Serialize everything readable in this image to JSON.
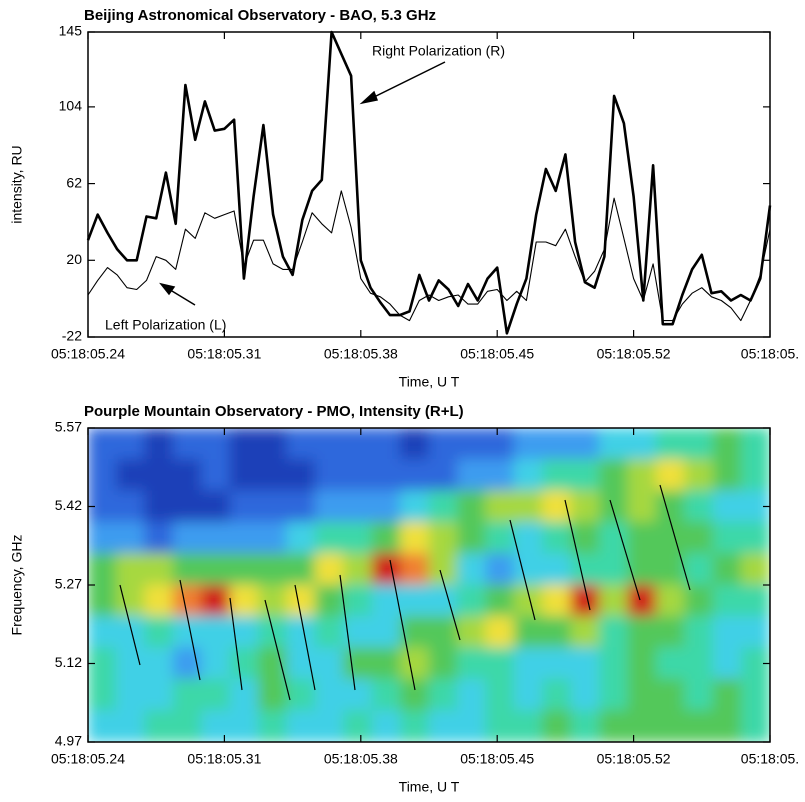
{
  "chart_data": [
    {
      "type": "line",
      "title": "Beijing Astronomical Observatory - BAO, 5.3 GHz",
      "ylabel": "intensity, RU",
      "xlabel": "Time, U T",
      "x": [
        5.24,
        5.245,
        5.25,
        5.255,
        5.26,
        5.265,
        5.27,
        5.275,
        5.28,
        5.285,
        5.29,
        5.295,
        5.3,
        5.305,
        5.31,
        5.315,
        5.32,
        5.325,
        5.33,
        5.335,
        5.34,
        5.345,
        5.35,
        5.355,
        5.36,
        5.365,
        5.37,
        5.375,
        5.38,
        5.385,
        5.39,
        5.395,
        5.4,
        5.405,
        5.41,
        5.415,
        5.42,
        5.425,
        5.43,
        5.435,
        5.44,
        5.445,
        5.45,
        5.455,
        5.46,
        5.465,
        5.47,
        5.475,
        5.48,
        5.485,
        5.49,
        5.495,
        5.5,
        5.505,
        5.51,
        5.515,
        5.52,
        5.525,
        5.53,
        5.535,
        5.54,
        5.545,
        5.55,
        5.555,
        5.56,
        5.565,
        5.57,
        5.575,
        5.58,
        5.585,
        5.59
      ],
      "series": [
        {
          "name": "Right Polarization (R)",
          "color": "#000000",
          "values": [
            31,
            45,
            35,
            26,
            20,
            20,
            44,
            43,
            68,
            40,
            116,
            86,
            107,
            91,
            92,
            97,
            10,
            55,
            94,
            45,
            22,
            12,
            42,
            58,
            64,
            145,
            133,
            121,
            20,
            5,
            -3,
            -10,
            -10,
            -8,
            12,
            -2,
            9,
            4,
            -5,
            7,
            -2,
            10,
            16,
            -20,
            -4,
            10,
            45,
            70,
            58,
            78,
            30,
            8,
            5,
            22,
            110,
            95,
            55,
            -2,
            72,
            -15,
            -15,
            1,
            15,
            23,
            2,
            3,
            -2,
            1,
            -2,
            10,
            50
          ]
        },
        {
          "name": "Left Polarization (L)",
          "color": "#000000",
          "values": [
            1,
            9,
            16,
            12,
            5,
            4,
            9,
            22,
            20,
            15,
            37,
            32,
            46,
            43,
            45,
            47,
            17,
            31,
            31,
            18,
            15,
            15,
            30,
            46,
            40,
            35,
            58,
            38,
            10,
            2,
            0,
            -4,
            -10,
            -13,
            -2,
            1,
            -2,
            0,
            1,
            -4,
            -4,
            3,
            4,
            -2,
            3,
            -2,
            30,
            30,
            28,
            37,
            22,
            8,
            14,
            26,
            54,
            32,
            10,
            -2,
            18,
            -13,
            -13,
            -4,
            2,
            5,
            0,
            -2,
            -6,
            -13,
            -2,
            12,
            37
          ]
        }
      ],
      "xlim": [
        5.24,
        5.59
      ],
      "xticks": [
        {
          "value": 5.24,
          "label": "05:18:05.24"
        },
        {
          "value": 5.31,
          "label": "05:18:05.31"
        },
        {
          "value": 5.38,
          "label": "05:18:05.38"
        },
        {
          "value": 5.45,
          "label": "05:18:05.45"
        },
        {
          "value": 5.52,
          "label": "05:18:05.52"
        },
        {
          "value": 5.59,
          "label": "05:18:05."
        }
      ],
      "ylim": [
        -22,
        145
      ],
      "yticks": [
        -22,
        20,
        62,
        104,
        145
      ]
    },
    {
      "type": "contour",
      "title": "Pourple Mountain Observatory - PMO, Intensity (R+L)",
      "ylabel": "Frequency, GHz",
      "xlabel": "Time, U T",
      "colors": [
        "#1c3fb8",
        "#2d68dc",
        "#3c9cf0",
        "#3fd0e6",
        "#3ed8a8",
        "#52c85a",
        "#a6d840",
        "#f0e03a",
        "#f08030",
        "#d01c1c"
      ],
      "z": [
        [
          1,
          1,
          0,
          1,
          1,
          0,
          0,
          1,
          1,
          1,
          1,
          0,
          1,
          1,
          1,
          2,
          2,
          2,
          3,
          3,
          4,
          4,
          5,
          4
        ],
        [
          1,
          0,
          0,
          0,
          1,
          0,
          0,
          0,
          1,
          1,
          1,
          1,
          1,
          2,
          2,
          3,
          4,
          4,
          5,
          6,
          7,
          6,
          5,
          4
        ],
        [
          1,
          1,
          0,
          0,
          0,
          1,
          1,
          1,
          2,
          2,
          2,
          3,
          4,
          5,
          6,
          6,
          7,
          6,
          5,
          6,
          5,
          4,
          3,
          3
        ],
        [
          2,
          2,
          1,
          2,
          2,
          2,
          2,
          3,
          4,
          4,
          5,
          7,
          6,
          5,
          4,
          3,
          4,
          5,
          4,
          5,
          5,
          5,
          4,
          4
        ],
        [
          5,
          6,
          6,
          5,
          5,
          5,
          5,
          5,
          7,
          6,
          9,
          8,
          6,
          3,
          2,
          3,
          3,
          4,
          4,
          5,
          5,
          4,
          5,
          6
        ],
        [
          5,
          6,
          7,
          8,
          9,
          7,
          6,
          7,
          5,
          4,
          3,
          3,
          3,
          4,
          5,
          6,
          7,
          9,
          6,
          9,
          6,
          5,
          4,
          4
        ],
        [
          3,
          3,
          4,
          3,
          3,
          3,
          4,
          3,
          4,
          3,
          3,
          5,
          5,
          6,
          7,
          5,
          5,
          6,
          4,
          5,
          5,
          4,
          3,
          3
        ],
        [
          4,
          3,
          3,
          2,
          3,
          4,
          5,
          3,
          3,
          5,
          5,
          6,
          5,
          4,
          4,
          3,
          3,
          3,
          4,
          5,
          4,
          4,
          3,
          4
        ],
        [
          4,
          3,
          3,
          4,
          4,
          3,
          5,
          4,
          3,
          3,
          4,
          5,
          4,
          3,
          4,
          3,
          4,
          3,
          4,
          5,
          5,
          4,
          5,
          4
        ],
        [
          3,
          3,
          4,
          4,
          3,
          3,
          4,
          3,
          3,
          4,
          3,
          4,
          3,
          3,
          4,
          4,
          5,
          4,
          5,
          5,
          5,
          5,
          5,
          4
        ]
      ],
      "xlim": [
        5.24,
        5.59
      ],
      "xticks": [
        {
          "value": 5.24,
          "label": "05:18:05.24"
        },
        {
          "value": 5.31,
          "label": "05:18:05.31"
        },
        {
          "value": 5.38,
          "label": "05:18:05.38"
        },
        {
          "value": 5.45,
          "label": "05:18:05.45"
        },
        {
          "value": 5.52,
          "label": "05:18:05.52"
        },
        {
          "value": 5.59,
          "label": "05:18:05."
        }
      ],
      "ylim": [
        4.97,
        5.57
      ],
      "yticks": [
        4.97,
        5.12,
        5.27,
        5.42,
        5.57
      ]
    }
  ]
}
